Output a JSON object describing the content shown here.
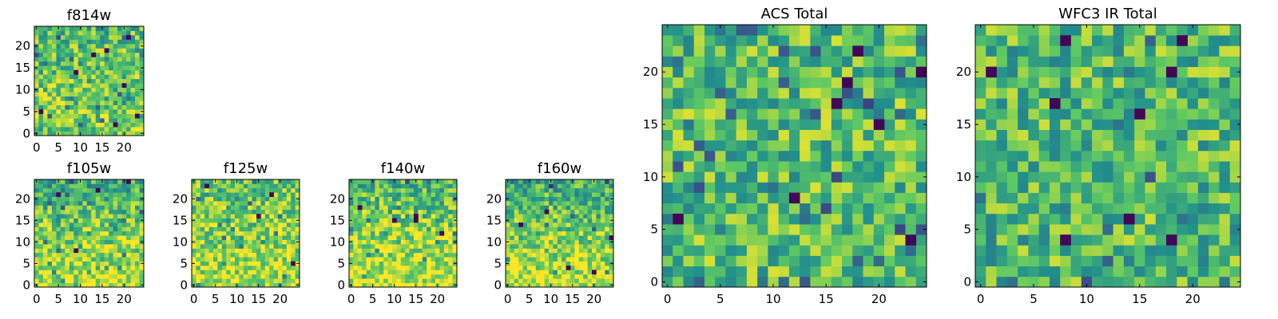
{
  "colors": {
    "background": "#ffffff",
    "axis": "#000000",
    "colormap": "viridis",
    "colormap_stops": [
      "#440154",
      "#3b528b",
      "#21918c",
      "#5ec962",
      "#fde725"
    ]
  },
  "chart_data": [
    {
      "type": "heatmap",
      "id": "f814w",
      "title": "f814w",
      "grid_size": 25,
      "xticks": [
        0,
        5,
        10,
        15,
        20
      ],
      "yticks": [
        0,
        5,
        10,
        15,
        20
      ],
      "xlim": [
        -0.5,
        24.5
      ],
      "ylim": [
        -0.5,
        24.5
      ],
      "value_range": [
        0,
        1
      ],
      "seed": 11,
      "base": [
        0.78,
        0.55,
        0.7,
        0.7
      ],
      "dark_pixels": [
        [
          21,
          22
        ],
        [
          18,
          2
        ],
        [
          9,
          14
        ],
        [
          13,
          18
        ],
        [
          1,
          5
        ],
        [
          23,
          4
        ],
        [
          16,
          19
        ],
        [
          20,
          11
        ]
      ]
    },
    {
      "type": "heatmap",
      "id": "f105w",
      "title": "f105w",
      "grid_size": 25,
      "xticks": [
        0,
        5,
        10,
        15,
        20
      ],
      "yticks": [
        0,
        5,
        10,
        15,
        20
      ],
      "xlim": [
        -0.5,
        24.5
      ],
      "ylim": [
        -0.5,
        24.5
      ],
      "value_range": [
        0,
        1
      ],
      "seed": 23,
      "base": [
        0.95,
        0.6,
        0.5,
        0.62
      ],
      "dark_pixels": [
        [
          9,
          8
        ],
        [
          14,
          22
        ],
        [
          21,
          24
        ],
        [
          5,
          21
        ]
      ]
    },
    {
      "type": "heatmap",
      "id": "f125w",
      "title": "f125w",
      "grid_size": 25,
      "xticks": [
        0,
        5,
        10,
        15,
        20
      ],
      "yticks": [
        0,
        5,
        10,
        15,
        20
      ],
      "xlim": [
        -0.5,
        24.5
      ],
      "ylim": [
        -0.5,
        24.5
      ],
      "value_range": [
        0,
        1
      ],
      "seed": 37,
      "base": [
        0.9,
        0.68,
        0.48,
        0.72
      ],
      "dark_pixels": [
        [
          15,
          16
        ],
        [
          23,
          5
        ],
        [
          3,
          23
        ],
        [
          18,
          21
        ]
      ]
    },
    {
      "type": "heatmap",
      "id": "f140w",
      "title": "f140w",
      "grid_size": 25,
      "xticks": [
        0,
        5,
        10,
        15,
        20
      ],
      "yticks": [
        0,
        5,
        10,
        15,
        20
      ],
      "xlim": [
        -0.5,
        24.5
      ],
      "ylim": [
        -0.5,
        24.5
      ],
      "value_range": [
        0,
        1
      ],
      "seed": 41,
      "base": [
        0.95,
        0.66,
        0.5,
        0.66
      ],
      "dark_pixels": [
        [
          10,
          15
        ],
        [
          15,
          16
        ],
        [
          15,
          15
        ],
        [
          2,
          18
        ],
        [
          21,
          12
        ]
      ]
    },
    {
      "type": "heatmap",
      "id": "f160w",
      "title": "f160w",
      "grid_size": 25,
      "xticks": [
        0,
        5,
        10,
        15,
        20
      ],
      "yticks": [
        0,
        5,
        10,
        15,
        20
      ],
      "xlim": [
        -0.5,
        24.5
      ],
      "ylim": [
        -0.5,
        24.5
      ],
      "value_range": [
        0,
        1
      ],
      "seed": 53,
      "base": [
        0.95,
        0.6,
        0.5,
        0.62
      ],
      "dark_pixels": [
        [
          3,
          14
        ],
        [
          24,
          11
        ],
        [
          9,
          17
        ],
        [
          14,
          4
        ],
        [
          20,
          3
        ]
      ]
    },
    {
      "type": "heatmap",
      "id": "acs-total",
      "title": "ACS Total",
      "grid_size": 25,
      "xticks": [
        0,
        5,
        10,
        15,
        20
      ],
      "yticks": [
        0,
        5,
        10,
        15,
        20
      ],
      "xlim": [
        -0.5,
        24.5
      ],
      "ylim": [
        -0.5,
        24.5
      ],
      "value_range": [
        0,
        1
      ],
      "seed": 67,
      "base": [
        0.7,
        0.7,
        0.7,
        0.7
      ],
      "dark_pixels": [
        [
          18,
          22
        ],
        [
          17,
          19
        ],
        [
          16,
          17
        ],
        [
          20,
          15
        ],
        [
          24,
          20
        ],
        [
          12,
          8
        ],
        [
          1,
          6
        ],
        [
          23,
          4
        ]
      ]
    },
    {
      "type": "heatmap",
      "id": "wfc3-ir-total",
      "title": "WFC3 IR Total",
      "grid_size": 25,
      "xticks": [
        0,
        5,
        10,
        15,
        20
      ],
      "yticks": [
        0,
        5,
        10,
        15,
        20
      ],
      "xlim": [
        -0.5,
        24.5
      ],
      "ylim": [
        -0.5,
        24.5
      ],
      "value_range": [
        0,
        1
      ],
      "seed": 79,
      "base": [
        0.68,
        0.68,
        0.68,
        0.68
      ],
      "dark_pixels": [
        [
          8,
          23
        ],
        [
          19,
          23
        ],
        [
          1,
          20
        ],
        [
          18,
          20
        ],
        [
          7,
          17
        ],
        [
          15,
          16
        ],
        [
          14,
          6
        ],
        [
          8,
          4
        ],
        [
          18,
          4
        ]
      ]
    }
  ]
}
